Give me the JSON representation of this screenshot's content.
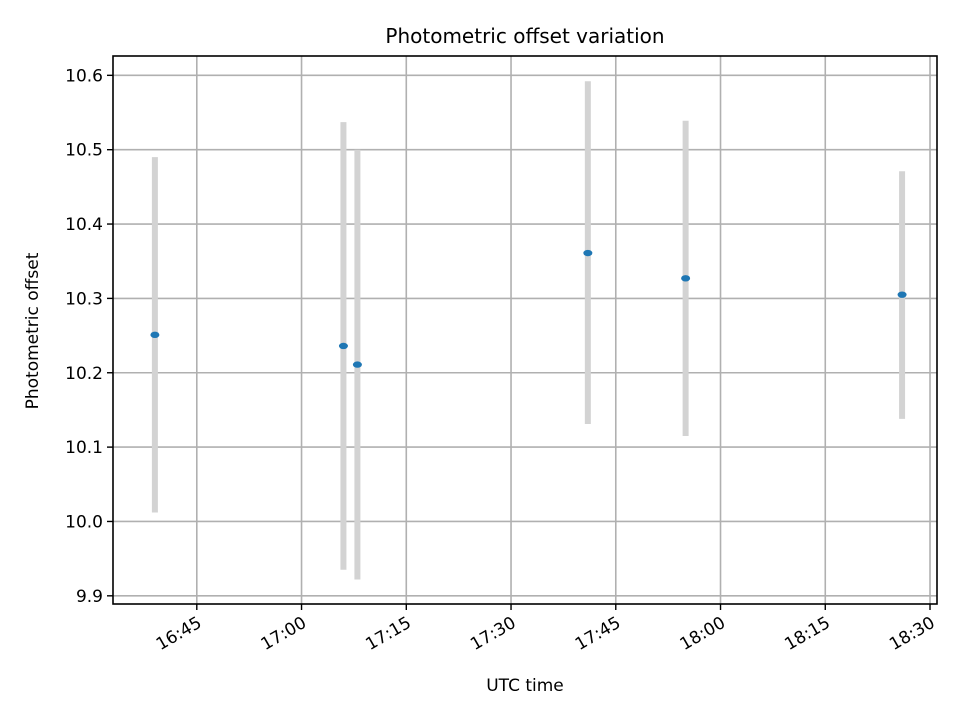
{
  "chart_data": {
    "type": "scatter",
    "title": "Photometric offset variation",
    "xlabel": "UTC time",
    "ylabel": "Photometric offset",
    "grid": true,
    "xlim": [
      "16:33",
      "18:31"
    ],
    "ylim": [
      9.889,
      10.626
    ],
    "x_ticks": [
      "16:45",
      "17:00",
      "17:15",
      "17:30",
      "17:45",
      "18:00",
      "18:15",
      "18:30"
    ],
    "y_ticks": [
      9.9,
      10.0,
      10.1,
      10.2,
      10.3,
      10.4,
      10.5,
      10.6
    ],
    "y_tick_labels": [
      "9.9",
      "10.0",
      "10.1",
      "10.2",
      "10.3",
      "10.4",
      "10.5",
      "10.6"
    ],
    "colors": {
      "points": "#1f77b4",
      "error_bars": "#d3d3d3"
    },
    "points": [
      {
        "x": "16:39",
        "y": 10.251,
        "y_low": 10.012,
        "y_high": 10.49
      },
      {
        "x": "17:06",
        "y": 10.236,
        "y_low": 9.935,
        "y_high": 10.537
      },
      {
        "x": "17:08",
        "y": 10.211,
        "y_low": 9.922,
        "y_high": 10.5
      },
      {
        "x": "17:41",
        "y": 10.361,
        "y_low": 10.131,
        "y_high": 10.592
      },
      {
        "x": "17:55",
        "y": 10.327,
        "y_low": 10.115,
        "y_high": 10.539
      },
      {
        "x": "18:26",
        "y": 10.305,
        "y_low": 10.138,
        "y_high": 10.471
      }
    ]
  }
}
